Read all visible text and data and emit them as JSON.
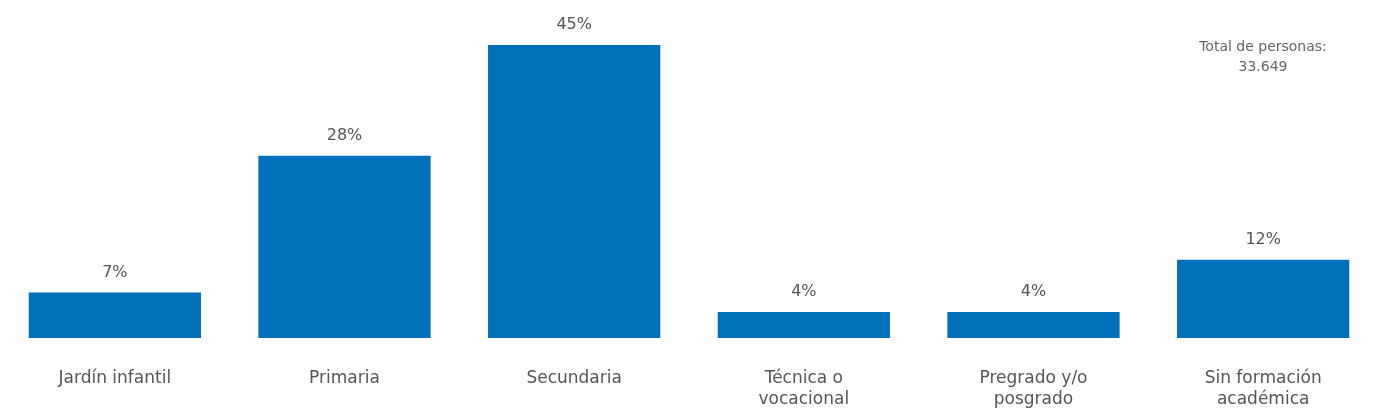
{
  "chart_data": {
    "type": "bar",
    "categories": [
      "Jardín infantil",
      "Primaria",
      "Secundaria",
      "Técnica o vocacional",
      "Pregrado y/o posgrado",
      "Sin formación académica"
    ],
    "values": [
      7,
      28,
      45,
      4,
      4,
      12
    ],
    "value_labels": [
      "7%",
      "28%",
      "45%",
      "4%",
      "4%",
      "12%"
    ],
    "color": "#0070bb",
    "ylim": [
      0,
      45
    ],
    "tick_labels": "x",
    "grid": false,
    "legend": false,
    "annotations": [
      "Total de personas: 33.649"
    ]
  }
}
